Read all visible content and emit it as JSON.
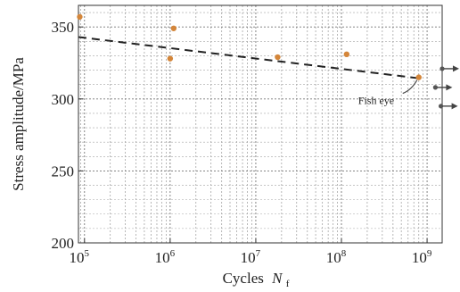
{
  "chart_data": {
    "type": "scatter",
    "title": "",
    "xlabel": "Cycles",
    "xlabel_symbol": "N",
    "xlabel_subscript": "f",
    "ylabel": "Stress amplitude/MPa",
    "x_scale": "log",
    "xlim": [
      85000,
      1500000000
    ],
    "ylim": [
      200,
      365
    ],
    "x_ticks": [
      {
        "value": 100000,
        "base": "10",
        "exp": "5"
      },
      {
        "value": 1000000,
        "base": "10",
        "exp": "6"
      },
      {
        "value": 10000000,
        "base": "10",
        "exp": "7"
      },
      {
        "value": 100000000,
        "base": "10",
        "exp": "8"
      },
      {
        "value": 1000000000,
        "base": "10",
        "exp": "9"
      }
    ],
    "y_ticks": [
      {
        "value": 200,
        "label": "200"
      },
      {
        "value": 250,
        "label": "250"
      },
      {
        "value": 300,
        "label": "300"
      },
      {
        "value": 350,
        "label": "350"
      }
    ],
    "grid": true,
    "series": [
      {
        "marker": "circle",
        "color": "#d4863a",
        "points": [
          {
            "x": 88000,
            "y": 357
          },
          {
            "x": 1000000,
            "y": 328
          },
          {
            "x": 1100000,
            "y": 349
          },
          {
            "x": 18000000,
            "y": 329
          },
          {
            "x": 115000000,
            "y": 331
          },
          {
            "x": 800000000,
            "y": 315
          }
        ]
      }
    ],
    "runouts": [
      {
        "x": 1500000000,
        "y": 321
      },
      {
        "x": 1250000000,
        "y": 308
      },
      {
        "x": 1450000000,
        "y": 295
      }
    ],
    "fit_line": {
      "style": "dashed",
      "color": "#222222",
      "x": [
        85000,
        900000000
      ],
      "y": [
        343,
        314
      ]
    },
    "annotation": {
      "text": "Fish eye",
      "x": 800000000,
      "y": 315
    }
  }
}
